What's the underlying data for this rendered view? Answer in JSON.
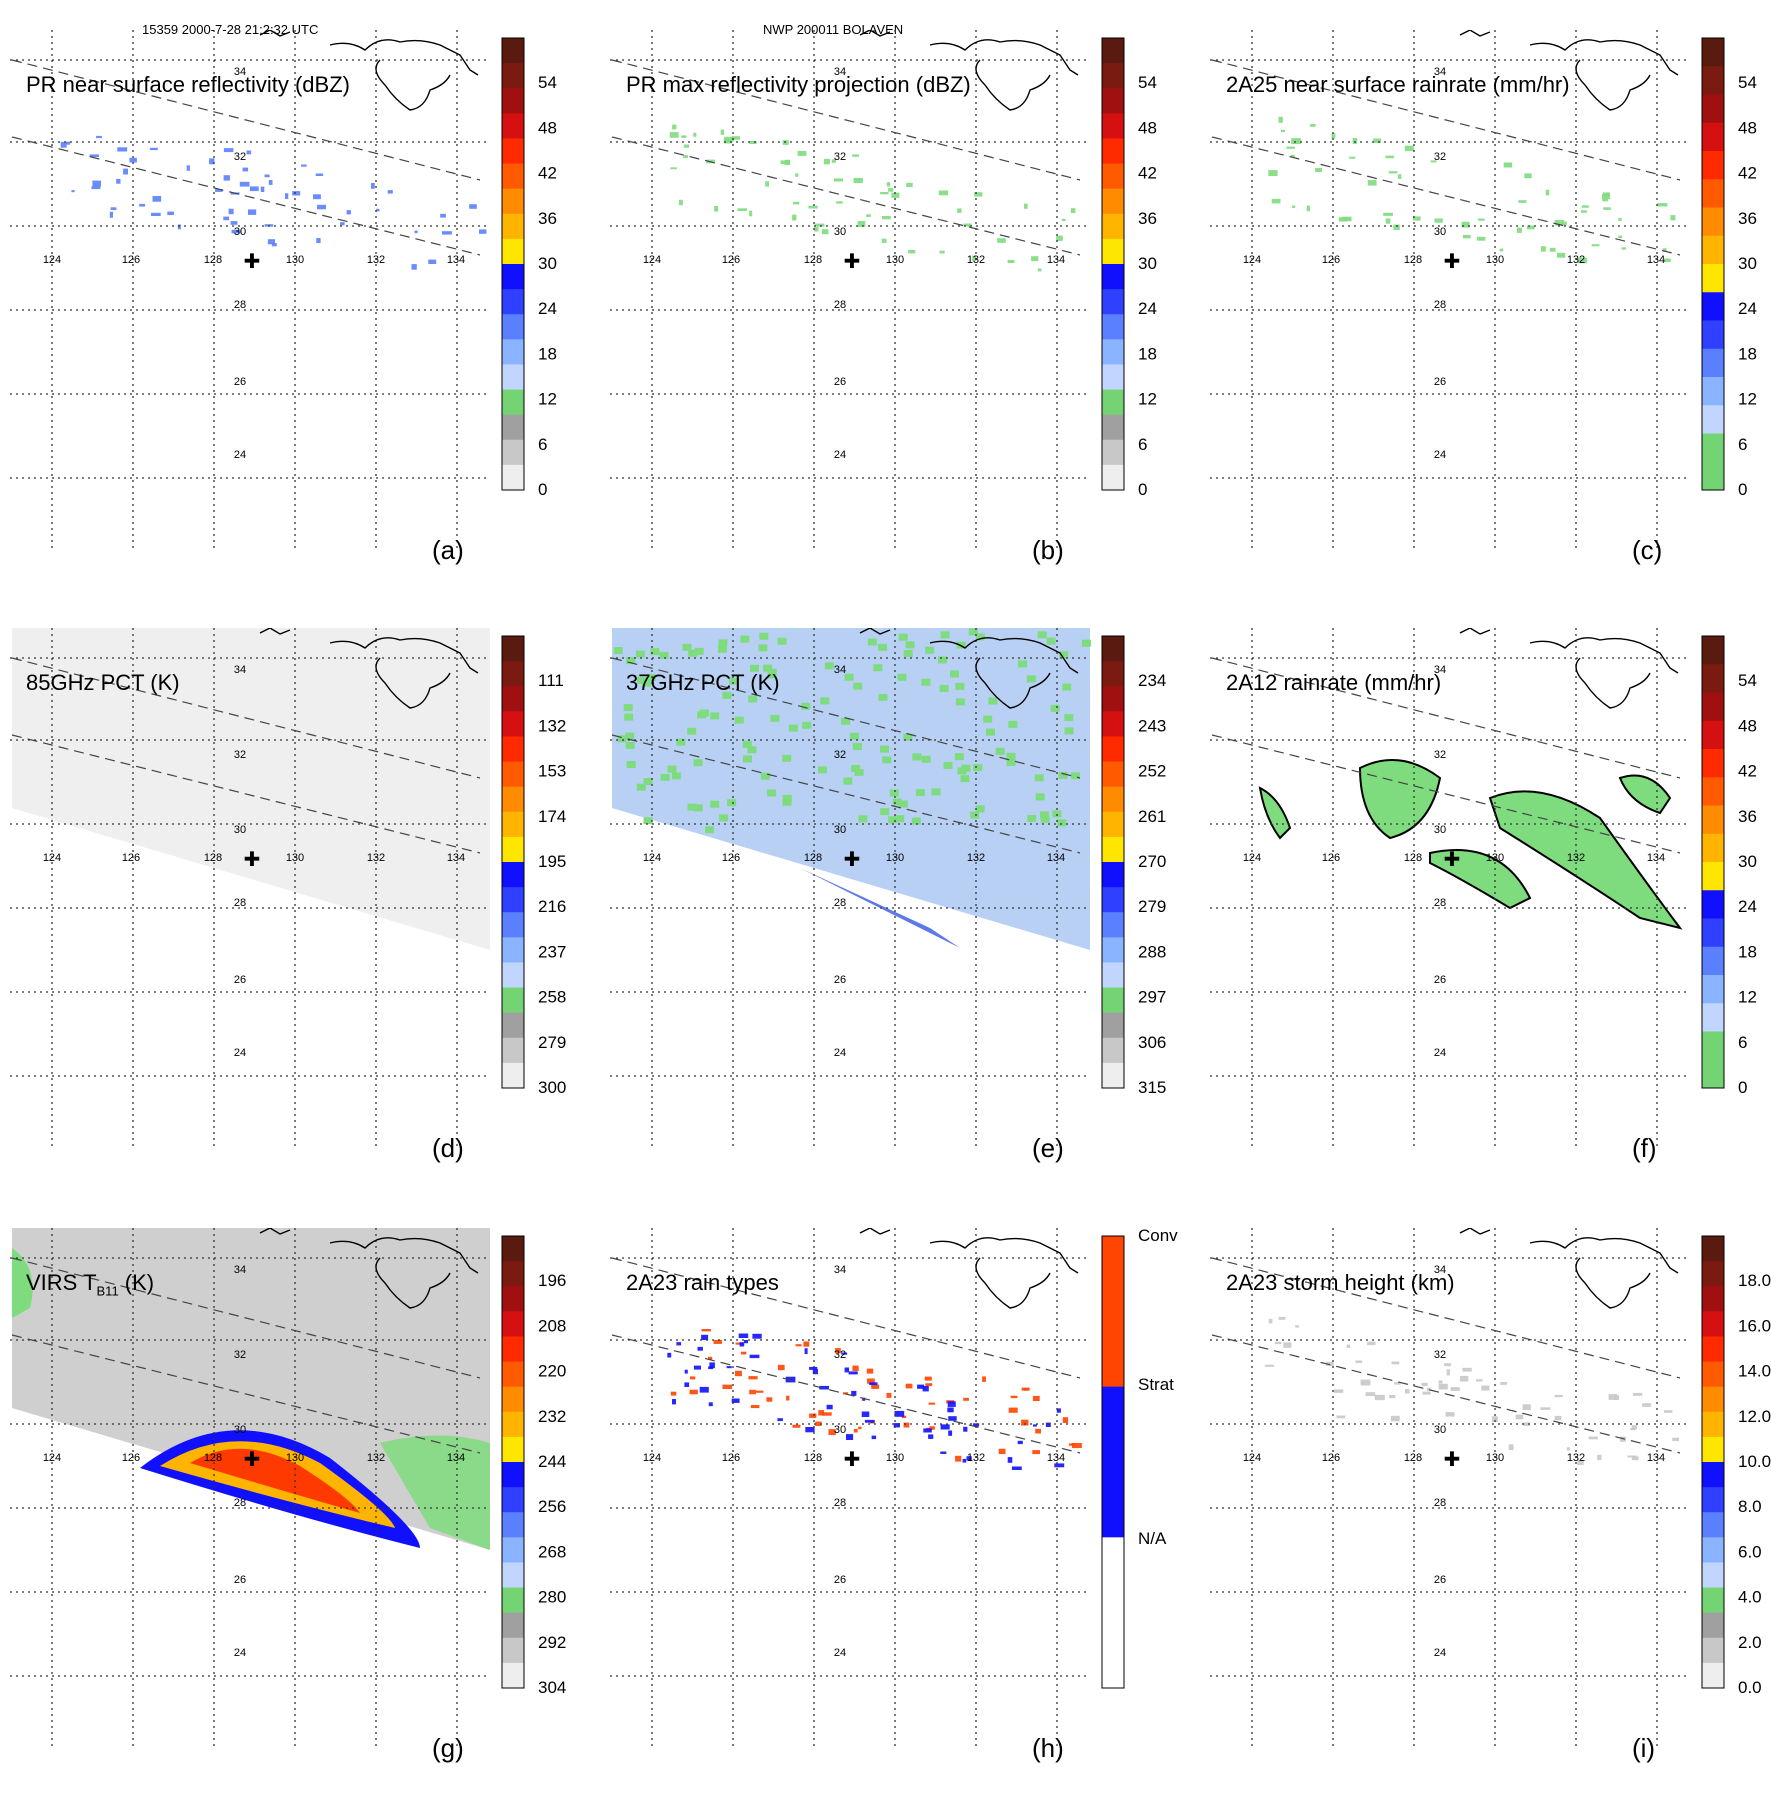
{
  "header": {
    "left": "15359 2000-7-28 21:2:32 UTC",
    "center": "NWP 200011 BOLAVEN"
  },
  "map": {
    "lon_ticks": [
      "124",
      "126",
      "128",
      "130",
      "132",
      "134"
    ],
    "lat_ticks": [
      "34",
      "32",
      "30",
      "28",
      "26",
      "24"
    ],
    "storm_center_symbol": "✚"
  },
  "colors": {
    "grid": "#333333",
    "coast": "#000000",
    "rain_green": "#7edc7e",
    "conv_red": "#ff4500",
    "strat_blue": "#1010ff"
  },
  "panels": [
    {
      "id": "a",
      "title": "PR near surface reflectivity (dBZ)",
      "label": "(a)",
      "colorbar_ticks": [
        "54",
        "48",
        "42",
        "36",
        "30",
        "24",
        "18",
        "12",
        "6",
        "0"
      ],
      "colorbar_colors": [
        "#5a1a10",
        "#7a1a10",
        "#a01010",
        "#d41010",
        "#ff2a00",
        "#ff5a00",
        "#ff8c00",
        "#ffb400",
        "#ffe600",
        "#1010ff",
        "#3040ff",
        "#5a80ff",
        "#8ab4ff",
        "#c0d6ff",
        "#74d474",
        "#a0a0a0",
        "#c8c8c8",
        "#eeeeee"
      ]
    },
    {
      "id": "b",
      "title": "PR max reflectivity projection (dBZ)",
      "label": "(b)",
      "colorbar_ticks": [
        "54",
        "48",
        "42",
        "36",
        "30",
        "24",
        "18",
        "12",
        "6",
        "0"
      ],
      "colorbar_colors": [
        "#5a1a10",
        "#7a1a10",
        "#a01010",
        "#d41010",
        "#ff2a00",
        "#ff5a00",
        "#ff8c00",
        "#ffb400",
        "#ffe600",
        "#1010ff",
        "#3040ff",
        "#5a80ff",
        "#8ab4ff",
        "#c0d6ff",
        "#74d474",
        "#a0a0a0",
        "#c8c8c8",
        "#eeeeee"
      ]
    },
    {
      "id": "c",
      "title": "2A25 near surface rainrate (mm/hr)",
      "label": "(c)",
      "colorbar_ticks": [
        "54",
        "48",
        "42",
        "36",
        "30",
        "24",
        "18",
        "12",
        "6",
        "0"
      ],
      "colorbar_colors": [
        "#5a1a10",
        "#7a1a10",
        "#a01010",
        "#d41010",
        "#ff2a00",
        "#ff5a00",
        "#ff8c00",
        "#ffb400",
        "#ffe600",
        "#1010ff",
        "#3040ff",
        "#5a80ff",
        "#8ab4ff",
        "#c0d6ff",
        "#74d474",
        "#74d474"
      ]
    },
    {
      "id": "d",
      "title": "85GHz PCT (K)",
      "label": "(d)",
      "colorbar_ticks": [
        "111",
        "132",
        "153",
        "174",
        "195",
        "216",
        "237",
        "258",
        "279",
        "300"
      ],
      "colorbar_colors": [
        "#5a1a10",
        "#7a1a10",
        "#a01010",
        "#d41010",
        "#ff2a00",
        "#ff5a00",
        "#ff8c00",
        "#ffb400",
        "#ffe600",
        "#1010ff",
        "#3040ff",
        "#5a80ff",
        "#8ab4ff",
        "#c0d6ff",
        "#74d474",
        "#a0a0a0",
        "#c8c8c8",
        "#eeeeee"
      ]
    },
    {
      "id": "e",
      "title": "37GHz PCT (K)",
      "label": "(e)",
      "colorbar_ticks": [
        "234",
        "243",
        "252",
        "261",
        "270",
        "279",
        "288",
        "297",
        "306",
        "315"
      ],
      "colorbar_colors": [
        "#5a1a10",
        "#7a1a10",
        "#a01010",
        "#d41010",
        "#ff2a00",
        "#ff5a00",
        "#ff8c00",
        "#ffb400",
        "#ffe600",
        "#1010ff",
        "#3040ff",
        "#5a80ff",
        "#8ab4ff",
        "#c0d6ff",
        "#74d474",
        "#a0a0a0",
        "#c8c8c8",
        "#eeeeee"
      ]
    },
    {
      "id": "f",
      "title": "2A12 rainrate (mm/hr)",
      "label": "(f)",
      "colorbar_ticks": [
        "54",
        "48",
        "42",
        "36",
        "30",
        "24",
        "18",
        "12",
        "6",
        "0"
      ],
      "colorbar_colors": [
        "#5a1a10",
        "#7a1a10",
        "#a01010",
        "#d41010",
        "#ff2a00",
        "#ff5a00",
        "#ff8c00",
        "#ffb400",
        "#ffe600",
        "#1010ff",
        "#3040ff",
        "#5a80ff",
        "#8ab4ff",
        "#c0d6ff",
        "#74d474",
        "#74d474"
      ]
    },
    {
      "id": "g",
      "title": "VIRS T",
      "title_sub": "B11",
      "title_suffix": " (K)",
      "label": "(g)",
      "colorbar_ticks": [
        "196",
        "208",
        "220",
        "232",
        "244",
        "256",
        "268",
        "280",
        "292",
        "304"
      ],
      "colorbar_colors": [
        "#5a1a10",
        "#7a1a10",
        "#a01010",
        "#d41010",
        "#ff2a00",
        "#ff5a00",
        "#ff8c00",
        "#ffb400",
        "#ffe600",
        "#1010ff",
        "#3040ff",
        "#5a80ff",
        "#8ab4ff",
        "#c0d6ff",
        "#74d474",
        "#a0a0a0",
        "#c8c8c8",
        "#eeeeee"
      ]
    },
    {
      "id": "h",
      "title": "2A23 rain types",
      "label": "(h)",
      "colorbar_ticks": [
        "Conv",
        "Strat",
        "N/A"
      ],
      "colorbar_colors": [
        "#ff4500",
        "#1010ff",
        "#ffffff"
      ]
    },
    {
      "id": "i",
      "title": "2A23 storm height (km)",
      "label": "(i)",
      "colorbar_ticks": [
        "18.0",
        "16.0",
        "14.0",
        "12.0",
        "10.0",
        "8.0",
        "6.0",
        "4.0",
        "2.0",
        "0.0"
      ],
      "colorbar_colors": [
        "#5a1a10",
        "#7a1a10",
        "#a01010",
        "#d41010",
        "#ff2a00",
        "#ff5a00",
        "#ff8c00",
        "#ffb400",
        "#ffe600",
        "#1010ff",
        "#3040ff",
        "#5a80ff",
        "#8ab4ff",
        "#c0d6ff",
        "#74d474",
        "#a0a0a0",
        "#c8c8c8",
        "#eeeeee"
      ]
    }
  ]
}
